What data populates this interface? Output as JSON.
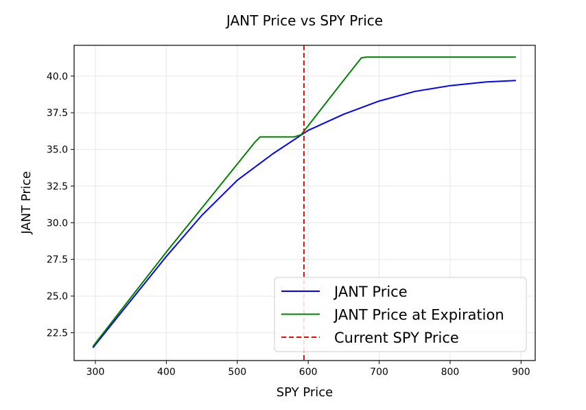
{
  "chart_data": {
    "type": "line",
    "title": "JANT Price vs SPY Price",
    "xlabel": "SPY Price",
    "ylabel": "JANT Price",
    "xlim": [
      270,
      920
    ],
    "ylim": [
      20.6,
      42.1
    ],
    "xticks": [
      300,
      400,
      500,
      600,
      700,
      800,
      900
    ],
    "yticks": [
      22.5,
      25.0,
      27.5,
      30.0,
      32.5,
      35.0,
      37.5,
      40.0
    ],
    "xtick_labels": [
      "300",
      "400",
      "500",
      "600",
      "700",
      "800",
      "900"
    ],
    "ytick_labels": [
      "22.5",
      "25.0",
      "27.5",
      "30.0",
      "32.5",
      "35.0",
      "37.5",
      "40.0"
    ],
    "grid": true,
    "legend_position": "lower-right",
    "series": [
      {
        "name": "JANT Price",
        "color": "#0000ff",
        "style": "solid",
        "x": [
          297,
          350,
          400,
          450,
          500,
          550,
          600,
          650,
          700,
          750,
          800,
          850,
          892
        ],
        "y": [
          21.5,
          24.7,
          27.7,
          30.5,
          32.9,
          34.7,
          36.3,
          37.4,
          38.3,
          38.95,
          39.35,
          39.6,
          39.7
        ]
      },
      {
        "name": "JANT Price at Expiration",
        "color": "#008000",
        "style": "solid",
        "x": [
          297,
          350,
          400,
          450,
          500,
          525,
          532,
          580,
          590,
          640,
          675,
          682,
          892
        ],
        "y": [
          21.6,
          24.9,
          28.0,
          31.0,
          34.0,
          35.5,
          35.85,
          35.85,
          36.0,
          39.1,
          41.25,
          41.3,
          41.3
        ]
      },
      {
        "name": "Current SPY Price",
        "color": "#ff0000",
        "style": "dashed",
        "type": "vline",
        "x": 594
      }
    ]
  }
}
